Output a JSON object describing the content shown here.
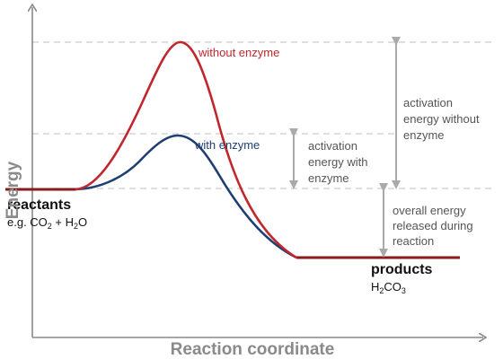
{
  "axes": {
    "y_label": "Energy",
    "x_label": "Reaction coordinate"
  },
  "curves": {
    "without_enzyme": {
      "label": "without enzyme",
      "color": "#c0272d"
    },
    "with_enzyme": {
      "label": "with enzyme",
      "color": "#1f3f73"
    }
  },
  "annotations": {
    "activation_with": [
      "activation",
      "energy with",
      "enzyme"
    ],
    "activation_without": [
      "activation",
      "energy without",
      "enzyme"
    ],
    "overall": [
      "overall energy",
      "released during",
      "reaction"
    ]
  },
  "reactants": {
    "title": "reactants",
    "example_prefix": "e.g. CO",
    "example_sub1": "2",
    "example_mid": " + H",
    "example_sub2": "2",
    "example_suffix": "O"
  },
  "products": {
    "title": "products",
    "formula_h": "H",
    "formula_sub1": "2",
    "formula_mid": "CO",
    "formula_sub2": "3"
  },
  "colors": {
    "axis": "#888888",
    "guide": "#cccccc",
    "arrow": "#aaaaaa",
    "level_line": "#8b1a1a"
  }
}
